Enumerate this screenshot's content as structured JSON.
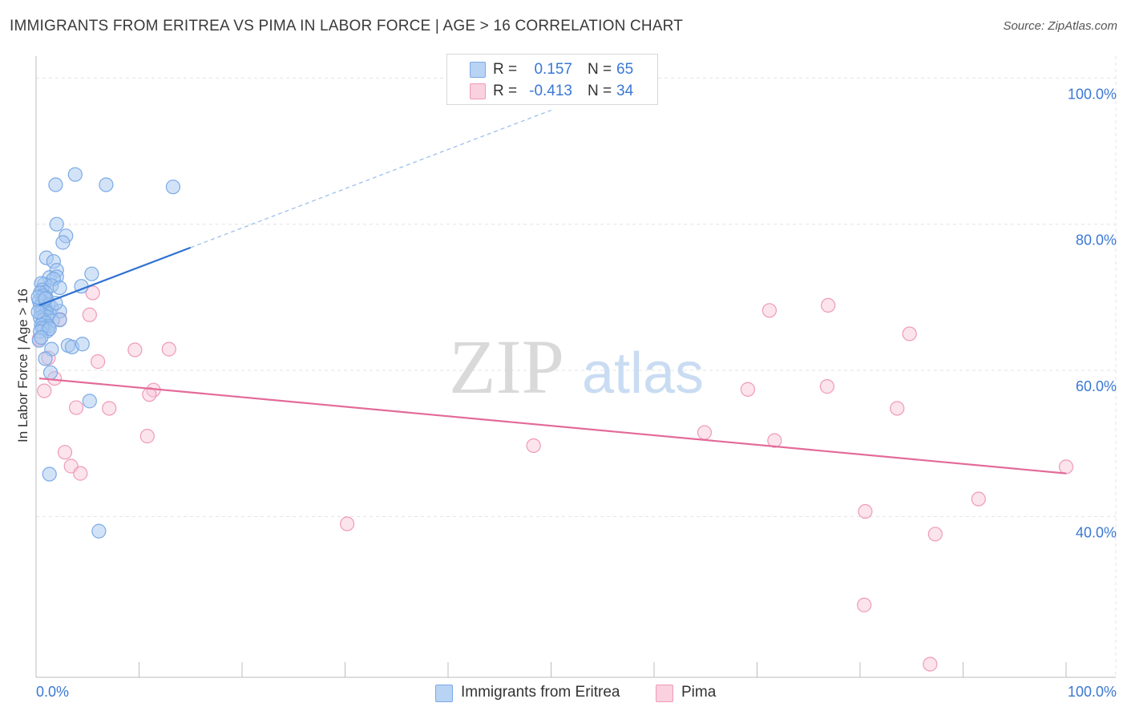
{
  "header": {
    "title": "IMMIGRANTS FROM ERITREA VS PIMA IN LABOR FORCE | AGE > 16 CORRELATION CHART",
    "source": "Source: ZipAtlas.com"
  },
  "watermark": {
    "part1": "ZIP",
    "part2": "atlas"
  },
  "legend": {
    "rows": [
      {
        "r_label": "R =",
        "r_value": "0.157",
        "n_label": "N =",
        "n_value": "65"
      },
      {
        "r_label": "R =",
        "r_value": "-0.413",
        "n_label": "N =",
        "n_value": "34"
      }
    ]
  },
  "bottom_legend": {
    "items": [
      {
        "label": "Immigrants from Eritrea"
      },
      {
        "label": "Pima"
      }
    ]
  },
  "chart_data": {
    "type": "scatter",
    "title": "IMMIGRANTS FROM ERITREA VS PIMA IN LABOR FORCE | AGE > 16 CORRELATION CHART",
    "xlabel": "",
    "ylabel": "In Labor Force | Age > 16",
    "xlim": [
      0,
      100
    ],
    "ylim": [
      18,
      103
    ],
    "x_tick_labels": [
      "0.0%",
      "100.0%"
    ],
    "y_ticks": [
      40,
      60,
      80,
      100
    ],
    "y_tick_labels": [
      "40.0%",
      "60.0%",
      "80.0%",
      "100.0%"
    ],
    "grid": true,
    "legend_position": "top-center",
    "colors": {
      "eritrea_fill": "#a8c8f0",
      "eritrea_stroke": "#7aaae6",
      "eritrea_line": "#2e72d2",
      "pima_fill": "#f8c4d6",
      "pima_stroke": "#ef9ab8",
      "pima_line": "#e36a98",
      "tick_label": "#3a78d4"
    },
    "series": [
      {
        "name": "Immigrants from Eritrea",
        "r": 0.157,
        "n": 65,
        "trend": {
          "x": [
            0.3,
            15
          ],
          "y": [
            68.9,
            76.8
          ],
          "dashed_to": {
            "x": 50,
            "y": 95.6
          }
        },
        "points": [
          [
            1.9,
            85.4
          ],
          [
            3.8,
            86.8
          ],
          [
            6.8,
            85.4
          ],
          [
            13.3,
            85.1
          ],
          [
            2.0,
            80.0
          ],
          [
            2.9,
            78.4
          ],
          [
            2.6,
            77.5
          ],
          [
            1.0,
            75.4
          ],
          [
            1.7,
            74.9
          ],
          [
            2.0,
            73.7
          ],
          [
            5.4,
            73.2
          ],
          [
            1.3,
            72.7
          ],
          [
            2.0,
            72.8
          ],
          [
            1.7,
            72.5
          ],
          [
            0.8,
            71.8
          ],
          [
            0.5,
            71.9
          ],
          [
            1.5,
            71.6
          ],
          [
            2.3,
            71.3
          ],
          [
            4.4,
            71.5
          ],
          [
            0.6,
            71.0
          ],
          [
            0.9,
            70.7
          ],
          [
            0.4,
            70.6
          ],
          [
            0.7,
            70.2
          ],
          [
            1.0,
            69.9
          ],
          [
            0.3,
            69.5
          ],
          [
            0.6,
            69.4
          ],
          [
            1.2,
            69.0
          ],
          [
            0.8,
            68.8
          ],
          [
            0.4,
            68.7
          ],
          [
            1.5,
            68.6
          ],
          [
            0.9,
            68.5
          ],
          [
            0.6,
            68.3
          ],
          [
            1.0,
            68.1
          ],
          [
            1.3,
            67.8
          ],
          [
            2.3,
            68.1
          ],
          [
            0.5,
            67.9
          ],
          [
            0.8,
            67.5
          ],
          [
            1.1,
            67.3
          ],
          [
            0.4,
            67.2
          ],
          [
            0.7,
            66.9
          ],
          [
            1.6,
            66.8
          ],
          [
            2.3,
            66.9
          ],
          [
            0.9,
            66.5
          ],
          [
            0.5,
            66.2
          ],
          [
            1.2,
            66.0
          ],
          [
            0.8,
            65.7
          ],
          [
            1.1,
            65.4
          ],
          [
            0.6,
            65.8
          ],
          [
            0.4,
            65.3
          ],
          [
            1.3,
            65.7
          ],
          [
            3.1,
            63.4
          ],
          [
            3.5,
            63.2
          ],
          [
            4.5,
            63.6
          ],
          [
            1.5,
            62.9
          ],
          [
            0.9,
            61.6
          ],
          [
            1.4,
            59.7
          ],
          [
            5.2,
            55.8
          ],
          [
            1.3,
            45.8
          ],
          [
            6.1,
            38.0
          ],
          [
            0.3,
            64.1
          ],
          [
            0.5,
            64.5
          ],
          [
            0.2,
            68.0
          ],
          [
            0.2,
            70.0
          ],
          [
            1.9,
            69.2
          ],
          [
            0.9,
            69.8
          ]
        ]
      },
      {
        "name": "Pima",
        "r": -0.413,
        "n": 34,
        "trend": {
          "x": [
            0.3,
            100
          ],
          "y": [
            58.9,
            45.9
          ]
        },
        "points": [
          [
            0.3,
            64.3
          ],
          [
            1.2,
            61.7
          ],
          [
            2.3,
            67.0
          ],
          [
            5.2,
            67.6
          ],
          [
            5.5,
            70.6
          ],
          [
            6.0,
            61.2
          ],
          [
            9.6,
            62.8
          ],
          [
            12.9,
            62.9
          ],
          [
            11.4,
            57.3
          ],
          [
            11.0,
            56.7
          ],
          [
            0.8,
            57.2
          ],
          [
            1.8,
            58.9
          ],
          [
            3.9,
            54.9
          ],
          [
            7.1,
            54.8
          ],
          [
            10.8,
            51.0
          ],
          [
            2.8,
            48.8
          ],
          [
            3.4,
            46.9
          ],
          [
            4.3,
            45.9
          ],
          [
            30.2,
            39.0
          ],
          [
            48.3,
            49.7
          ],
          [
            64.9,
            51.5
          ],
          [
            69.1,
            57.4
          ],
          [
            71.2,
            68.2
          ],
          [
            71.7,
            50.4
          ],
          [
            76.8,
            57.8
          ],
          [
            76.9,
            68.9
          ],
          [
            80.5,
            40.7
          ],
          [
            80.4,
            27.9
          ],
          [
            83.6,
            54.8
          ],
          [
            84.8,
            65.0
          ],
          [
            87.3,
            37.6
          ],
          [
            91.5,
            42.4
          ],
          [
            86.8,
            19.8
          ],
          [
            100.0,
            46.8
          ]
        ]
      }
    ]
  }
}
